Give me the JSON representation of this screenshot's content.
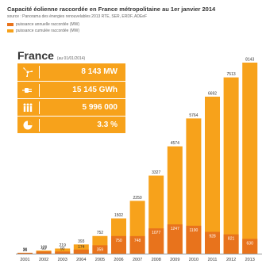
{
  "header": {
    "title": "Capacité éolienne raccordée en France métropolitaine au 1er janvier 2014",
    "source": "source : Panorama des énergies renouvelables 2013 RTE, SER, ERDF, ADEeF"
  },
  "legend": [
    {
      "label": "puissance annuelle raccordée (MW)",
      "color": "#e8731c"
    },
    {
      "label": "puissance cumulée raccordée (MW)",
      "color": "#f7a21b"
    }
  ],
  "panel": {
    "country": "France",
    "date": "(au 01/01/2014)",
    "kpis": [
      {
        "icon": "wind-turbine-icon",
        "value": "8 143 MW"
      },
      {
        "icon": "plug-icon",
        "value": "15 145 GWh"
      },
      {
        "icon": "people-icon",
        "value": "5 996 000"
      },
      {
        "icon": "pie-icon",
        "value": "3.3 %"
      }
    ]
  },
  "colors": {
    "annual": "#e8731c",
    "cumulative": "#f7a21b",
    "panel": "#f7a21b"
  },
  "chart_data": {
    "type": "bar",
    "title": "Capacité éolienne raccordée en France métropolitaine au 1er janvier 2014",
    "categories": [
      "2001",
      "2002",
      "2003",
      "2004",
      "2005",
      "2006",
      "2007",
      "2008",
      "2009",
      "2010",
      "2011",
      "2012",
      "2013"
    ],
    "series": [
      {
        "name": "puissance cumulée raccordée (MW)",
        "values": [
          36,
          129,
          219,
          393,
          752,
          1502,
          2250,
          3327,
          4574,
          5764,
          6692,
          7513,
          8143
        ]
      },
      {
        "name": "puissance annuelle raccordée (MW)",
        "values": [
          36,
          93,
          90,
          174,
          359,
          750,
          748,
          1077,
          1247,
          1190,
          928,
          821,
          630
        ]
      }
    ],
    "ylim": [
      0,
      8143
    ],
    "grid": false,
    "legend": "top-left"
  }
}
